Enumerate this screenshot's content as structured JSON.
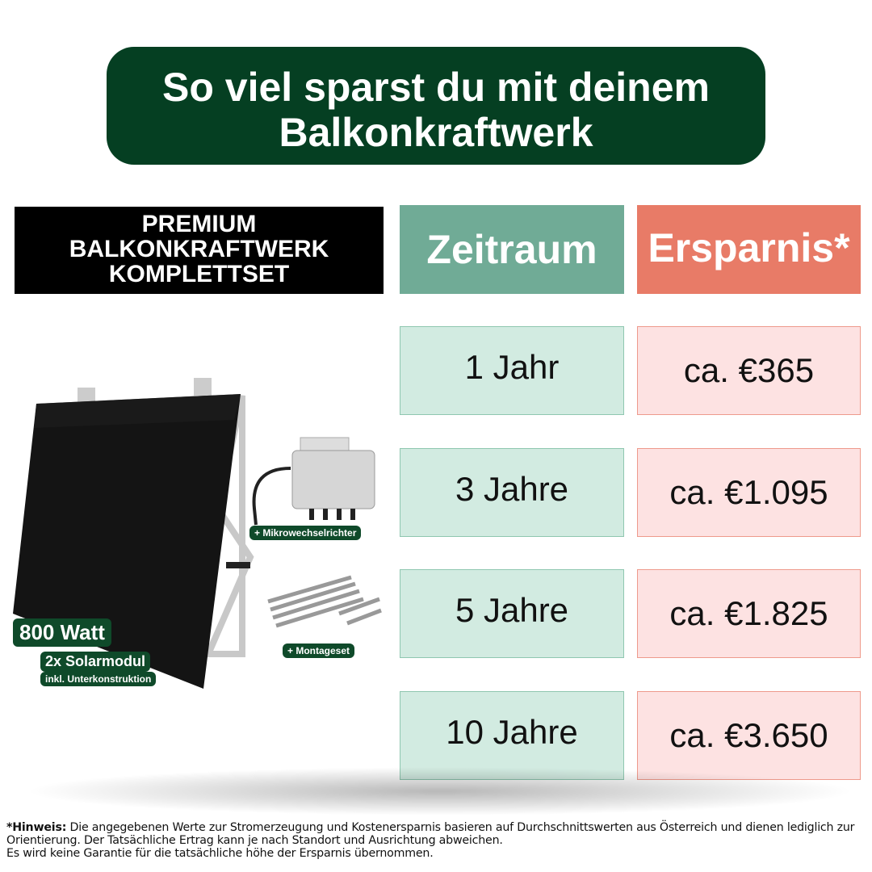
{
  "title": {
    "line1": "So viel sparst du mit deinem",
    "line2": "Balkonkraftwerk"
  },
  "product": {
    "header_lines": [
      "PREMIUM",
      "BALKONKRAFTWERK",
      "KOMPLETTSET"
    ],
    "badges": {
      "power": "800 Watt",
      "modules": "2x Solarmodul",
      "mount": "inkl. Unterkonstruktion",
      "inverter": "+ Mikrowechselrichter",
      "mounting_set": "+ Montageset"
    }
  },
  "table": {
    "headers": {
      "period": "Zeitraum",
      "savings": "Ersparnis*"
    },
    "rows": [
      {
        "period": "1 Jahr",
        "savings": "ca. €365"
      },
      {
        "period": "3 Jahre",
        "savings": "ca. €1.095"
      },
      {
        "period": "5 Jahre",
        "savings": "ca. €1.825"
      },
      {
        "period": "10 Jahre",
        "savings": "ca. €3.650"
      }
    ]
  },
  "note": {
    "label": "*Hinweis:",
    "text": " Die angegebenen Werte zur Stromerzeugung und Kostenersparnis basieren auf Durchschnittswerten aus Österreich und dienen lediglich zur Orientierung. Der Tatsächliche Ertrag kann je nach Standort und Ausrichtung abweichen.",
    "line3": "Es wird keine Garantie für die tatsächliche höhe der Ersparnis übernommen."
  },
  "colors": {
    "title_bg": "#053f22",
    "period_header": "#70ab96",
    "savings_header": "#e87b67",
    "period_cell": "#d2ebe1",
    "savings_cell": "#fde2e2"
  }
}
